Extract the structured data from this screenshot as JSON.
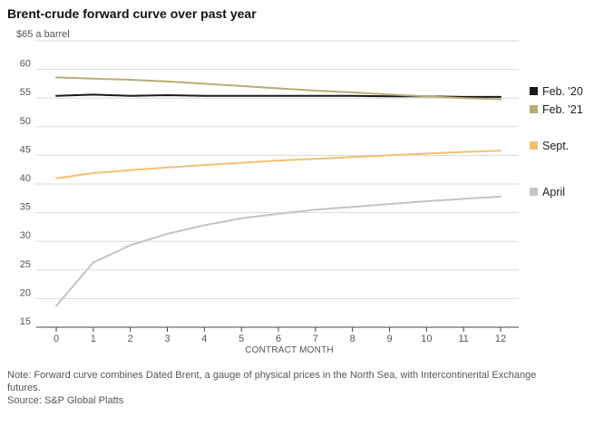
{
  "header": {
    "title": "Brent-crude forward curve over past year",
    "unit_label": "$65 a barrel"
  },
  "footer": {
    "note": "Note: Forward curve combines Dated Brent, a gauge of physical prices in the North Sea, with Intercontinental Exchange futures.",
    "source": "Source: S&P Global Platts"
  },
  "chart_data": {
    "type": "line",
    "title": "Brent-crude forward curve over past year",
    "xlabel": "CONTRACT MONTH",
    "ylabel": "$65 a barrel",
    "x": [
      0,
      1,
      2,
      3,
      4,
      5,
      6,
      7,
      8,
      9,
      10,
      11,
      12
    ],
    "xlim": [
      0,
      12
    ],
    "ylim": [
      15,
      65
    ],
    "yticks": [
      15,
      20,
      25,
      30,
      35,
      40,
      45,
      50,
      55,
      60
    ],
    "yticks_labels": [
      "15",
      "20",
      "25",
      "30",
      "35",
      "40",
      "45",
      "50",
      "55",
      "60"
    ],
    "grid": "horizontal",
    "legend_placement": "right, next to line ends",
    "series": [
      {
        "name": "Feb. '20",
        "color": "#1a1a1a",
        "values": [
          55.4,
          55.6,
          55.4,
          55.5,
          55.4,
          55.4,
          55.4,
          55.4,
          55.4,
          55.3,
          55.3,
          55.2,
          55.2
        ]
      },
      {
        "name": "Feb. '21",
        "color": "#b5ad77",
        "values": [
          58.6,
          58.4,
          58.2,
          57.9,
          57.5,
          57.1,
          56.7,
          56.3,
          56.0,
          55.6,
          55.3,
          55.0,
          54.8
        ]
      },
      {
        "name": "Sept.",
        "color": "#f7bf6e",
        "values": [
          41.0,
          41.9,
          42.4,
          42.9,
          43.3,
          43.7,
          44.1,
          44.4,
          44.7,
          45.0,
          45.3,
          45.6,
          45.8
        ]
      },
      {
        "name": "April",
        "color": "#c4c4c4",
        "values": [
          18.7,
          26.3,
          29.3,
          31.3,
          32.8,
          34.0,
          34.8,
          35.5,
          36.0,
          36.5,
          37.0,
          37.4,
          37.8
        ]
      }
    ]
  }
}
